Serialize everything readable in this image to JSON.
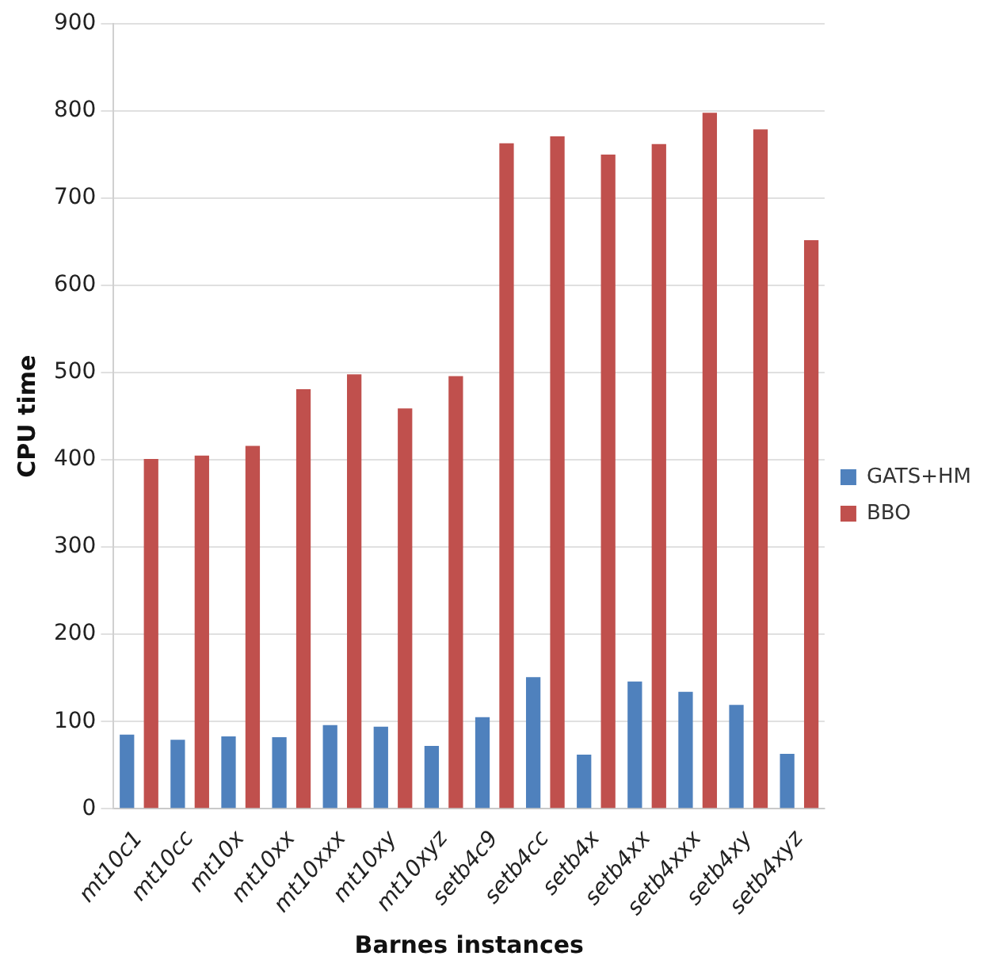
{
  "chart_data": {
    "type": "bar",
    "xlabel": "Barnes instances",
    "ylabel": "CPU time",
    "categories": [
      "mt10c1",
      "mt10cc",
      "mt10x",
      "mt10xx",
      "mt10xxx",
      "mt10xy",
      "mt10xyz",
      "setb4c9",
      "setb4cc",
      "setb4x",
      "setb4xx",
      "setb4xxx",
      "setb4xy",
      "setb4xyz"
    ],
    "series": [
      {
        "name": "GATS+HM",
        "color": "#4f81bd",
        "values": [
          85,
          79,
          83,
          82,
          96,
          94,
          72,
          105,
          151,
          62,
          146,
          134,
          119,
          63
        ]
      },
      {
        "name": "BBO",
        "color": "#c0504d",
        "values": [
          401,
          405,
          416,
          481,
          498,
          459,
          496,
          763,
          771,
          750,
          762,
          798,
          779,
          652
        ]
      }
    ],
    "ylim": [
      0,
      900
    ],
    "yticks": [
      0,
      100,
      200,
      300,
      400,
      500,
      600,
      700,
      800,
      900
    ],
    "grid": "y",
    "legend": "right"
  }
}
